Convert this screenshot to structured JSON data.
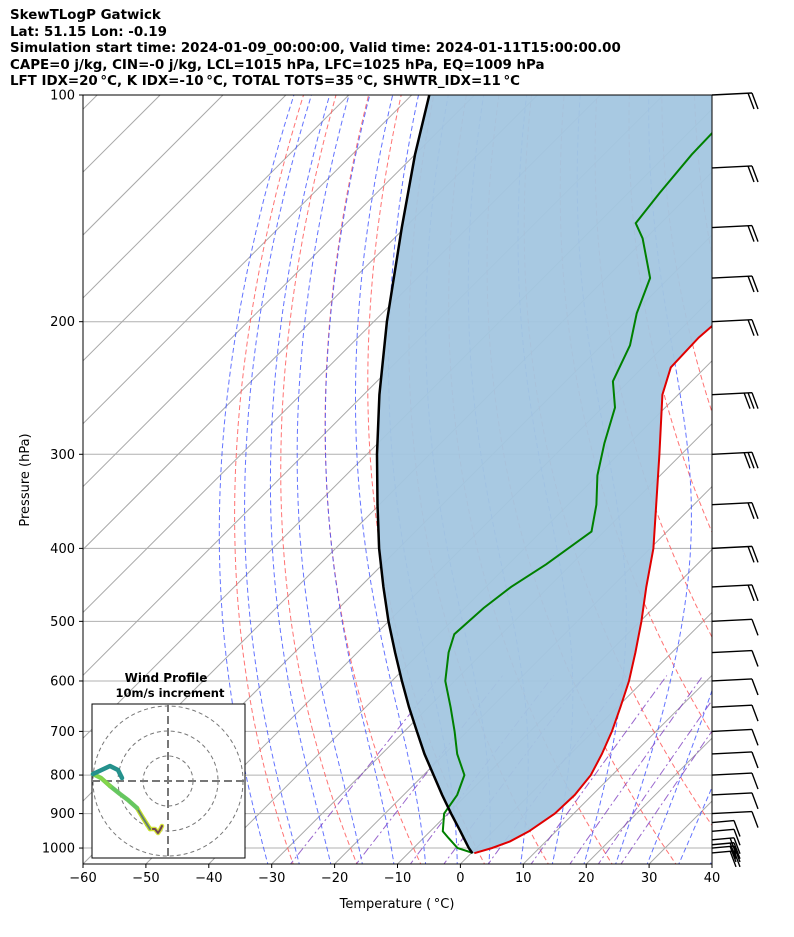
{
  "header": {
    "title": "SkewTLogP Gatwick",
    "location": "Lat: 51.15   Lon: -0.19",
    "times": "Simulation start time: 2024-01-09_00:00:00, Valid time: 2024-01-11T15:00:00.00",
    "cape_line": "CAPE=0 j/kg, CIN=-0 j/kg, LCL=1015 hPa, LFC=1025 hPa, EQ=1009 hPa",
    "index_line": "LFT IDX=20 °C, K IDX=-10 °C, TOTAL TOTS=35 °C, SHWTR_IDX=11 °C"
  },
  "chart_data": {
    "type": "line",
    "subtype": "skew-T log-P diagram",
    "xlabel": "Temperature ( °C)",
    "ylabel": "Pressure (hPa)",
    "xlim": [
      -60,
      40
    ],
    "ylim": [
      1050,
      100
    ],
    "y_scale": "log",
    "skew": "45 deg",
    "x_ticks": [
      "−60",
      "−50",
      "−40",
      "−30",
      "−20",
      "−10",
      "0",
      "10",
      "20",
      "30",
      "40"
    ],
    "y_ticks": [
      "100",
      "200",
      "300",
      "400",
      "500",
      "600",
      "700",
      "800",
      "900",
      "1000"
    ],
    "grid": true,
    "colors": {
      "temperature": "#e00000",
      "dewpoint": "#008000",
      "parcel": "#000000",
      "shading": "#a3c6e0",
      "dry_adiabat": "#ff5a5a",
      "moist_adiabat": "#3c50ff",
      "mixing_ratio": "#8040c0",
      "isotherm": "#a8a8a8"
    },
    "series": [
      {
        "role": "temperature",
        "points": [
          [
            1016,
            0.5
          ],
          [
            1000,
            2.5
          ],
          [
            980,
            4.3
          ],
          [
            950,
            5.7
          ],
          [
            900,
            7.0
          ],
          [
            850,
            7.2
          ],
          [
            800,
            6.6
          ],
          [
            750,
            5.0
          ],
          [
            700,
            3.0
          ],
          [
            650,
            0.5
          ],
          [
            600,
            -2.3
          ],
          [
            550,
            -5.8
          ],
          [
            500,
            -9.8
          ],
          [
            450,
            -14.5
          ],
          [
            400,
            -19.5
          ],
          [
            350,
            -26.0
          ],
          [
            300,
            -33.5
          ],
          [
            250,
            -42.5
          ],
          [
            230,
            -45.5
          ],
          [
            210,
            -45.8
          ],
          [
            190,
            -45.0
          ],
          [
            170,
            -44.7
          ],
          [
            160,
            -46.5
          ],
          [
            150,
            -50.0
          ],
          [
            140,
            -53.5
          ],
          [
            130,
            -57.5
          ],
          [
            120,
            -61.5
          ],
          [
            110,
            -65.0
          ],
          [
            100,
            -67.5
          ]
        ]
      },
      {
        "role": "dewpoint",
        "points": [
          [
            1015,
            0.2
          ],
          [
            1000,
            -3.0
          ],
          [
            970,
            -6.0
          ],
          [
            950,
            -8.0
          ],
          [
            900,
            -10.6
          ],
          [
            850,
            -11.5
          ],
          [
            800,
            -13.5
          ],
          [
            750,
            -18.0
          ],
          [
            700,
            -22.0
          ],
          [
            650,
            -26.5
          ],
          [
            600,
            -31.5
          ],
          [
            550,
            -35.5
          ],
          [
            520,
            -37.5
          ],
          [
            480,
            -37.0
          ],
          [
            450,
            -36.0
          ],
          [
            420,
            -34.0
          ],
          [
            380,
            -32.0
          ],
          [
            350,
            -35.5
          ],
          [
            320,
            -40.0
          ],
          [
            290,
            -44.0
          ],
          [
            260,
            -48.0
          ],
          [
            240,
            -52.5
          ],
          [
            215,
            -55.5
          ],
          [
            195,
            -59.5
          ],
          [
            175,
            -63.0
          ],
          [
            155,
            -70.5
          ],
          [
            148,
            -74.0
          ],
          [
            135,
            -75.0
          ],
          [
            120,
            -76.0
          ],
          [
            100,
            -76.5
          ]
        ]
      },
      {
        "role": "parcel",
        "points": [
          [
            1016,
            0.2
          ],
          [
            1000,
            -1.2
          ],
          [
            950,
            -5.2
          ],
          [
            900,
            -9.5
          ],
          [
            850,
            -13.9
          ],
          [
            800,
            -18.4
          ],
          [
            750,
            -23.2
          ],
          [
            700,
            -28.0
          ],
          [
            650,
            -33.1
          ],
          [
            600,
            -38.4
          ],
          [
            550,
            -44.0
          ],
          [
            500,
            -50.0
          ],
          [
            450,
            -56.3
          ],
          [
            400,
            -63.1
          ],
          [
            350,
            -70.3
          ],
          [
            300,
            -78.4
          ],
          [
            250,
            -87.5
          ],
          [
            200,
            -97.9
          ],
          [
            150,
            -110.5
          ],
          [
            120,
            -120.0
          ],
          [
            100,
            -127.2
          ]
        ]
      }
    ],
    "wind_barbs_pressures": [
      "1015",
      "1000",
      "990",
      "975",
      "950",
      "925",
      "900",
      "850",
      "800",
      "750",
      "700",
      "650",
      "600",
      "550",
      "500",
      "450",
      "400",
      "350",
      "300",
      "250",
      "200",
      "175",
      "150",
      "125",
      "100"
    ],
    "inset": {
      "title": "Wind Profile",
      "subtitle": "10m/s increment",
      "rings": 3
    }
  }
}
